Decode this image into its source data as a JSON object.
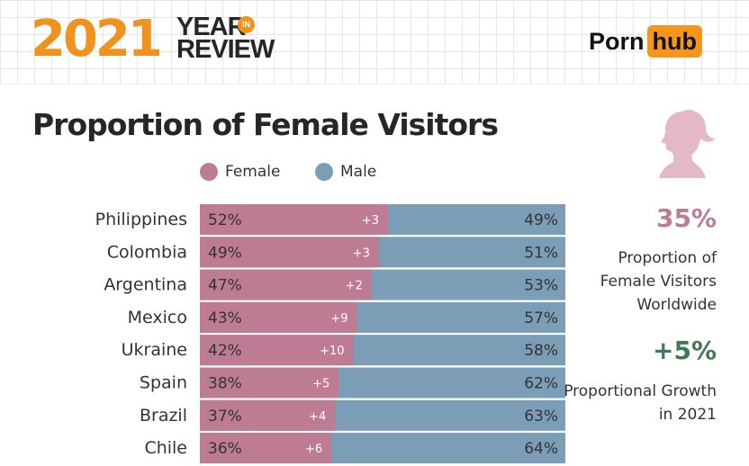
{
  "header": {
    "year": "2021",
    "year_word": "YEAR",
    "in_word": "IN",
    "review_word": "REVIEW",
    "logo_left": "Porn",
    "logo_right": "hub"
  },
  "colors": {
    "female": "#bd7c94",
    "male": "#7b9db6",
    "accent_pink": "#bd7c94",
    "accent_green": "#3f7a55"
  },
  "icons": {
    "silhouette": "woman-silhouette-icon"
  },
  "side_stats": {
    "proportion_value": "35%",
    "proportion_label": "Proportion of Female Visitors Worldwide",
    "growth_value": "+5%",
    "growth_label": "Proportional Growth in 2021"
  },
  "chart_data": {
    "type": "bar",
    "stacked": true,
    "orientation": "horizontal",
    "title": "Proportion of Female Visitors",
    "legend": [
      "Female",
      "Male"
    ],
    "legend_position": "top",
    "categories": [
      "Philippines",
      "Colombia",
      "Argentina",
      "Mexico",
      "Ukraine",
      "Spain",
      "Brazil",
      "Chile"
    ],
    "series": [
      {
        "name": "Female",
        "values": [
          52,
          49,
          47,
          43,
          42,
          38,
          37,
          36
        ],
        "labels": [
          "52%",
          "49%",
          "47%",
          "43%",
          "42%",
          "38%",
          "37%",
          "36%"
        ]
      },
      {
        "name": "Male",
        "values": [
          49,
          51,
          53,
          57,
          58,
          62,
          63,
          64
        ],
        "labels": [
          "49%",
          "51%",
          "53%",
          "57%",
          "58%",
          "62%",
          "63%",
          "64%"
        ]
      }
    ],
    "change_labels": [
      "+3",
      "+3",
      "+2",
      "+9",
      "+10",
      "+5",
      "+4",
      "+6"
    ]
  }
}
